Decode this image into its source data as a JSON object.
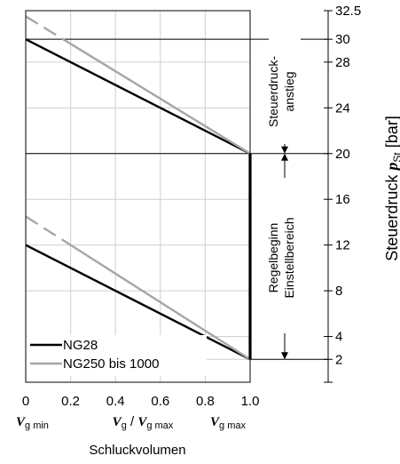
{
  "chart_data": {
    "type": "line",
    "xlabel": "Schluckvolumen",
    "ylabel": "Steuerdruck p",
    "ylabel_sub": "St",
    "ylabel_unit": "[bar]",
    "x_ticks": [
      "0",
      "0.2",
      "0.4",
      "0.6",
      "0.8",
      "1.0"
    ],
    "y_ticks": [
      "2",
      "4",
      "8",
      "12",
      "16",
      "20",
      "24",
      "28",
      "30",
      "32.5"
    ],
    "xlim": [
      0,
      1.0
    ],
    "ylim": [
      0,
      32.5
    ],
    "grid": true,
    "legend_position": "bottom-left",
    "x_markers": {
      "left": {
        "main": "V",
        "sub": "g min"
      },
      "middle": {
        "main1": "V",
        "sub1": "g",
        "sep": " / ",
        "main2": "V",
        "sub2": "g max"
      },
      "right": {
        "main": "V",
        "sub": "g max"
      }
    },
    "annotations": {
      "upper_band": [
        "Steuerdruck-",
        "anstieg"
      ],
      "lower_band": [
        "Regelbeginn",
        "Einstellbereich"
      ]
    },
    "series": [
      {
        "name": "NG28",
        "color": "#000000",
        "upper": [
          [
            0,
            30
          ],
          [
            1.0,
            20
          ]
        ],
        "lower": [
          [
            0,
            12
          ],
          [
            1.0,
            2
          ]
        ]
      },
      {
        "name": "NG250 bis 1000",
        "color": "#a6a6a6",
        "upper": [
          [
            0,
            32
          ],
          [
            1.0,
            20
          ]
        ],
        "lower": [
          [
            0,
            14.5
          ],
          [
            1.0,
            2
          ]
        ],
        "upper_dashed_to_x": 0.2,
        "lower_dashed_to_x": 0.2
      }
    ],
    "vertical_segment": {
      "x": 1.0,
      "y_from": 2,
      "y_to": 20
    }
  }
}
